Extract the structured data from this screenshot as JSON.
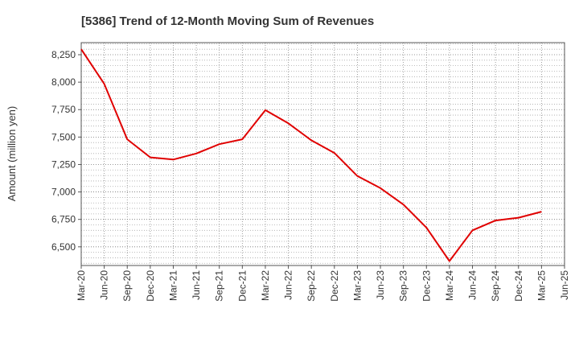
{
  "chart_data": {
    "type": "line",
    "title": "[5386]  Trend of 12-Month Moving Sum of Revenues",
    "xlabel": "",
    "ylabel": "Amount (million yen)",
    "x_ticks": [
      "Mar-20",
      "Jun-20",
      "Sep-20",
      "Dec-20",
      "Mar-21",
      "Jun-21",
      "Sep-21",
      "Dec-21",
      "Mar-22",
      "Jun-22",
      "Sep-22",
      "Dec-22",
      "Mar-23",
      "Jun-23",
      "Sep-23",
      "Dec-23",
      "Mar-24",
      "Jun-24",
      "Sep-24",
      "Dec-24",
      "Mar-25",
      "Jun-25"
    ],
    "y_ticks": [
      "6,500",
      "6,750",
      "7,000",
      "7,250",
      "7,500",
      "7,750",
      "8,000",
      "8,250"
    ],
    "y_tick_values": [
      6500,
      6750,
      7000,
      7250,
      7500,
      7750,
      8000,
      8250
    ],
    "ylim": [
      6330,
      8360
    ],
    "grid": true,
    "series": [
      {
        "color": "#e00000",
        "x": [
          "Mar-20",
          "Jun-20",
          "Sep-20",
          "Dec-20",
          "Mar-21",
          "Jun-21",
          "Sep-21",
          "Dec-21",
          "Mar-22",
          "Jun-22",
          "Sep-22",
          "Dec-22",
          "Mar-23",
          "Jun-23",
          "Sep-23",
          "Dec-23",
          "Mar-24",
          "Jun-24",
          "Sep-24",
          "Dec-24",
          "Mar-25"
        ],
        "values": [
          8300,
          7985,
          7480,
          7315,
          7295,
          7350,
          7435,
          7480,
          7745,
          7625,
          7470,
          7355,
          7145,
          7035,
          6885,
          6675,
          6370,
          6650,
          6740,
          6765,
          6820
        ]
      }
    ]
  }
}
